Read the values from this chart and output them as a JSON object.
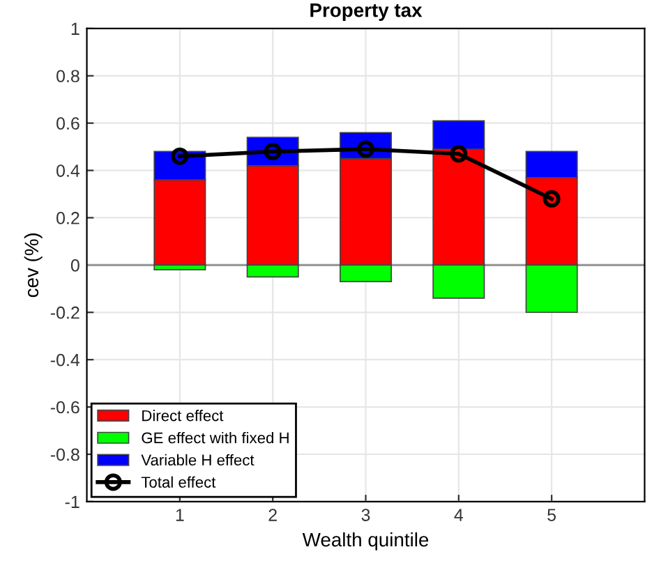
{
  "chart_data": {
    "type": "bar",
    "stacked": true,
    "title": "Property tax",
    "xlabel": "Wealth quintile",
    "ylabel": "cev (%)",
    "x": [
      1,
      2,
      3,
      4,
      5
    ],
    "xlim": [
      0,
      6
    ],
    "xticks": [
      1,
      2,
      3,
      4,
      5
    ],
    "ylim": [
      -1,
      1
    ],
    "yticks": [
      -1,
      -0.8,
      -0.6,
      -0.4,
      -0.2,
      0,
      0.2,
      0.4,
      0.6,
      0.8,
      1
    ],
    "grid": true,
    "legend": "bottom left",
    "series": [
      {
        "name": "Direct effect",
        "color": "#ff0000",
        "values": [
          0.36,
          0.42,
          0.45,
          0.49,
          0.37
        ]
      },
      {
        "name": "GE effect with fixed H",
        "color": "#00ff00",
        "values": [
          -0.02,
          -0.05,
          -0.07,
          -0.14,
          -0.2
        ]
      },
      {
        "name": "Variable H effect",
        "color": "#0000ff",
        "values": [
          0.12,
          0.12,
          0.11,
          0.12,
          0.11
        ]
      },
      {
        "name": "Total effect",
        "type": "line",
        "color": "#000000",
        "marker": "circle",
        "values": [
          0.46,
          0.48,
          0.49,
          0.47,
          0.28
        ]
      }
    ]
  }
}
